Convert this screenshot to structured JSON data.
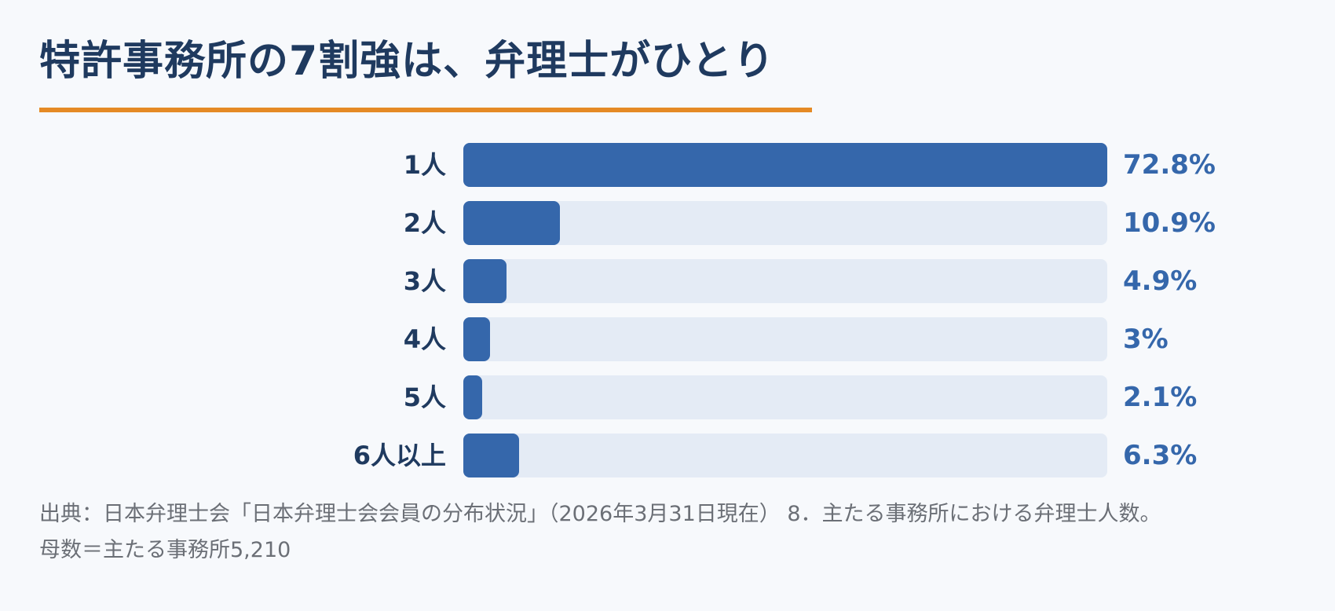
{
  "title": "特許事務所の7割強は、弁理士がひとり",
  "colors": {
    "title": "#1f3a5f",
    "accent_underline": "#e58a25",
    "bar_fill": "#3567ab",
    "bar_track": "#e4ebf5",
    "value_text": "#3567ab",
    "source_text": "#6b6f76",
    "background": "#f7f9fc"
  },
  "chart_data": {
    "type": "bar",
    "orientation": "horizontal",
    "categories": [
      "1人",
      "2人",
      "3人",
      "4人",
      "5人",
      "6人以上"
    ],
    "values": [
      72.8,
      10.9,
      4.9,
      3,
      2.1,
      6.3
    ],
    "value_labels": [
      "72.8%",
      "10.9%",
      "4.9%",
      "3%",
      "2.1%",
      "6.3%"
    ],
    "xlim": [
      0,
      72.8
    ],
    "grid": false,
    "legend": "none"
  },
  "source": {
    "line1": "出典：日本弁理士会「日本弁理士会会員の分布状況」（2026年3月31日現在） 8．主たる事務所における弁理士人数。",
    "line2": "母数＝主たる事務所5,210"
  }
}
